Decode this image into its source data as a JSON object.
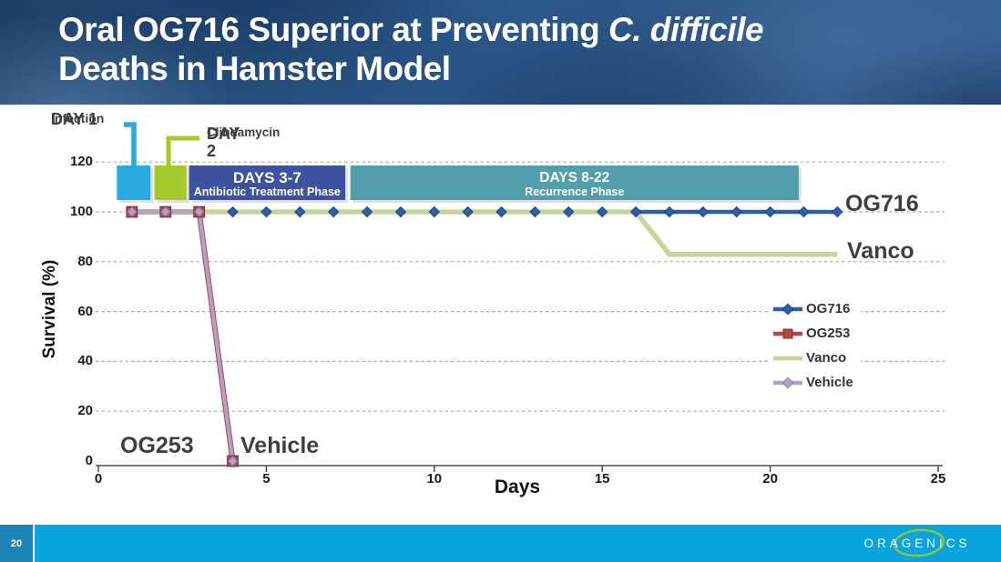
{
  "header": {
    "title_line1_prefix": "Oral OG716 Superior at Preventing ",
    "title_line1_italic": "C. difficile",
    "title_line2": "Deaths in Hamster Model"
  },
  "timeline": {
    "events": [
      {
        "label": "DAY 1",
        "sublabel": "Infection",
        "color": "#29ABE2",
        "day_start": 0.55,
        "day_end": 1.55
      },
      {
        "label": "DAY 2",
        "sublabel": "Clindamycin",
        "color": "#A5C82D",
        "day_start": 1.67,
        "day_end": 2.62
      }
    ],
    "phases": [
      {
        "label": "DAYS 3-7",
        "sublabel": "Antibiotic Treatment Phase",
        "color": "#3E53A0",
        "day_start": 2.7,
        "day_end": 7.35
      },
      {
        "label": "DAYS 8-22",
        "sublabel": "Recurrence Phase",
        "color": "#529EAC",
        "day_start": 7.5,
        "day_end": 20.85
      }
    ]
  },
  "chart_data": {
    "type": "line",
    "title": "",
    "xlabel": "Days",
    "ylabel": "Survival (%)",
    "xlim": [
      0,
      25
    ],
    "ylim": [
      0,
      120
    ],
    "xticks": [
      0,
      5,
      10,
      15,
      20,
      25
    ],
    "yticks": [
      0,
      20,
      40,
      60,
      80,
      100,
      120
    ],
    "grid": "horizontal-dashed",
    "legend_position": "center-right",
    "series": [
      {
        "name": "OG716",
        "color": "#2F5DA8",
        "marker": "diamond",
        "marker_stroke": "#24457C",
        "x": [
          1,
          2,
          3,
          4,
          5,
          6,
          7,
          8,
          9,
          10,
          11,
          12,
          13,
          14,
          15,
          16,
          17,
          18,
          19,
          20,
          21,
          22
        ],
        "y": [
          100,
          100,
          100,
          100,
          100,
          100,
          100,
          100,
          100,
          100,
          100,
          100,
          100,
          100,
          100,
          100,
          100,
          100,
          100,
          100,
          100,
          100
        ]
      },
      {
        "name": "OG253",
        "color": "#B04A4A",
        "marker": "square",
        "marker_stroke": "#7E3136",
        "x": [
          1,
          2,
          3,
          4
        ],
        "y": [
          100,
          100,
          100,
          0
        ]
      },
      {
        "name": "Vanco",
        "color": "#C3D69B",
        "marker": "none",
        "marker_stroke": "#A9BF7E",
        "x": [
          1,
          2,
          3,
          4,
          5,
          6,
          7,
          8,
          9,
          10,
          11,
          12,
          13,
          14,
          15,
          16,
          17,
          18,
          19,
          20,
          21,
          22
        ],
        "y": [
          100,
          100,
          100,
          100,
          100,
          100,
          100,
          100,
          100,
          100,
          100,
          100,
          100,
          100,
          100,
          100,
          83,
          83,
          83,
          83,
          83,
          83
        ]
      },
      {
        "name": "Vehicle",
        "color": "#B2A1C7",
        "marker": "diamond",
        "marker_stroke": "#8C7FA8",
        "x": [
          1,
          2,
          3,
          4
        ],
        "y": [
          100,
          100,
          100,
          0
        ]
      }
    ]
  },
  "footer": {
    "page_number": "20",
    "logo_text": "ORAGENICS",
    "logo_ring_color": "#8CC63E"
  }
}
